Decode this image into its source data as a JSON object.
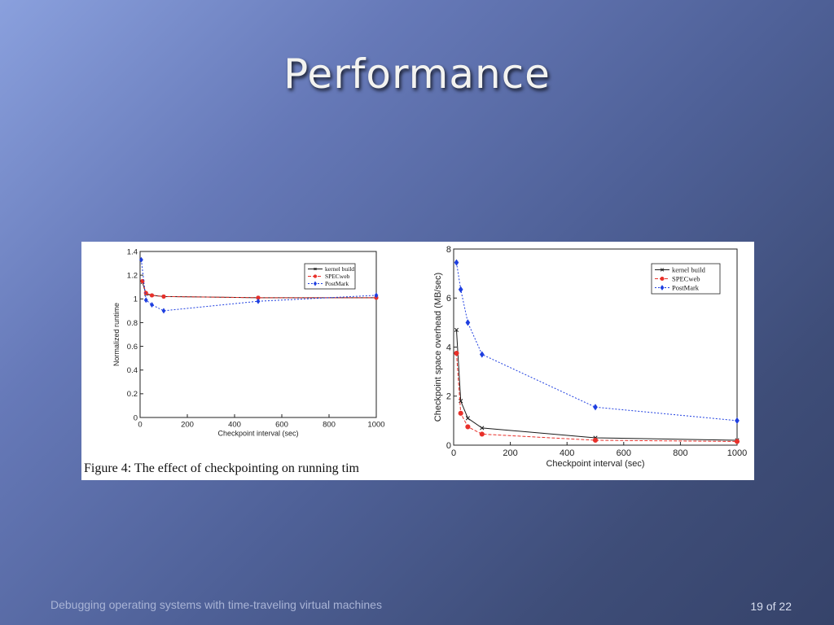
{
  "slide": {
    "title": "Performance",
    "footer_left": "Debugging operating systems with time-traveling virtual machines",
    "footer_right": "19 of 22"
  },
  "figure_caption": "Figure 4:  The effect of checkpointing on running tim",
  "colors": {
    "kernel_build": "#1a1a1a",
    "specweb": "#e8302a",
    "postmark": "#1f3fe0"
  },
  "chart_data": [
    {
      "type": "line",
      "xlabel": "Checkpoint interval (sec)",
      "ylabel": "Normalized runtime",
      "xlim": [
        0,
        1000
      ],
      "ylim": [
        0,
        1.4
      ],
      "xticks": [
        "0",
        "200",
        "400",
        "600",
        "800",
        "1000"
      ],
      "yticks": [
        "0",
        "0.2",
        "0.4",
        "0.6",
        "0.8",
        "1",
        "1.2",
        "1.4"
      ],
      "legend_position": "top-right",
      "series": [
        {
          "name": "kernel build",
          "x": [
            10,
            25,
            50,
            100,
            500,
            1000
          ],
          "values": [
            1.14,
            1.04,
            1.03,
            1.02,
            1.01,
            1.01
          ]
        },
        {
          "name": "SPECweb",
          "x": [
            10,
            25,
            50,
            100,
            500,
            1000
          ],
          "values": [
            1.15,
            1.05,
            1.03,
            1.02,
            1.01,
            1.01
          ]
        },
        {
          "name": "PostMark",
          "x": [
            5,
            25,
            50,
            100,
            500,
            1000
          ],
          "values": [
            1.33,
            0.99,
            0.95,
            0.9,
            0.98,
            1.03
          ]
        }
      ]
    },
    {
      "type": "line",
      "xlabel": "Checkpoint interval (sec)",
      "ylabel": "Checkpoint space overhead (MB/sec)",
      "xlim": [
        0,
        1000
      ],
      "ylim": [
        0,
        8
      ],
      "xticks": [
        "0",
        "200",
        "400",
        "600",
        "800",
        "1000"
      ],
      "yticks": [
        "0",
        "2",
        "4",
        "6",
        "8"
      ],
      "legend_position": "top-right",
      "series": [
        {
          "name": "kernel build",
          "x": [
            10,
            25,
            50,
            100,
            500,
            1000
          ],
          "values": [
            4.7,
            1.8,
            1.1,
            0.7,
            0.3,
            0.2
          ]
        },
        {
          "name": "SPECweb",
          "x": [
            10,
            25,
            50,
            100,
            500,
            1000
          ],
          "values": [
            3.75,
            1.3,
            0.75,
            0.45,
            0.2,
            0.15
          ]
        },
        {
          "name": "PostMark",
          "x": [
            10,
            25,
            50,
            100,
            500,
            1000
          ],
          "values": [
            7.45,
            6.35,
            5.0,
            3.7,
            1.55,
            1.0
          ]
        }
      ]
    }
  ]
}
